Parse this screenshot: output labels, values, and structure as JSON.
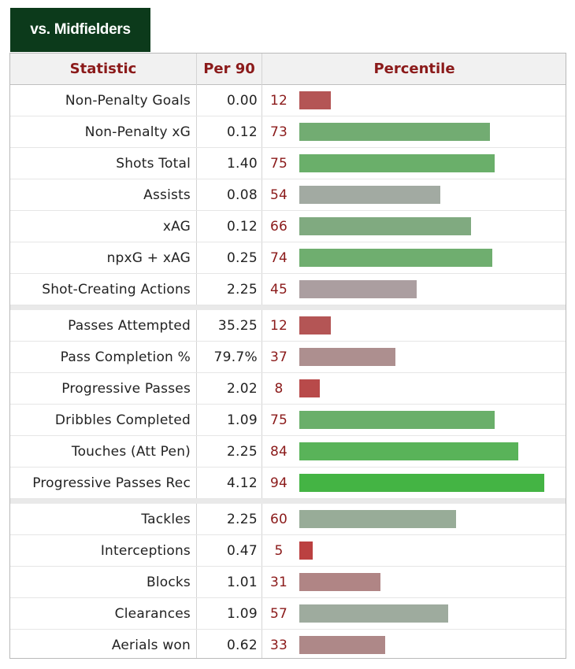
{
  "tab": {
    "label": "vs. Midfielders"
  },
  "header": {
    "statistic": "Statistic",
    "per90": "Per 90",
    "percentile": "Percentile"
  },
  "groups": [
    [
      {
        "stat": "Non-Penalty Goals",
        "per90": "0.00",
        "percentile": 12,
        "color": "#b45555"
      },
      {
        "stat": "Non-Penalty xG",
        "per90": "0.12",
        "percentile": 73,
        "color": "#72ac72"
      },
      {
        "stat": "Shots Total",
        "per90": "1.40",
        "percentile": 75,
        "color": "#6aaf6a"
      },
      {
        "stat": "Assists",
        "per90": "0.08",
        "percentile": 54,
        "color": "#a2aaa2"
      },
      {
        "stat": "xAG",
        "per90": "0.12",
        "percentile": 66,
        "color": "#80aa80"
      },
      {
        "stat": "npxG + xAG",
        "per90": "0.25",
        "percentile": 74,
        "color": "#6fae6f"
      },
      {
        "stat": "Shot-Creating Actions",
        "per90": "2.25",
        "percentile": 45,
        "color": "#ab9ea0"
      }
    ],
    [
      {
        "stat": "Passes Attempted",
        "per90": "35.25",
        "percentile": 12,
        "color": "#b45555"
      },
      {
        "stat": "Pass Completion %",
        "per90": "79.7%",
        "percentile": 37,
        "color": "#ad8f8f"
      },
      {
        "stat": "Progressive Passes",
        "per90": "2.02",
        "percentile": 8,
        "color": "#b84a4a"
      },
      {
        "stat": "Dribbles Completed",
        "per90": "1.09",
        "percentile": 75,
        "color": "#6aaf6a"
      },
      {
        "stat": "Touches (Att Pen)",
        "per90": "2.25",
        "percentile": 84,
        "color": "#59b359"
      },
      {
        "stat": "Progressive Passes Rec",
        "per90": "4.12",
        "percentile": 94,
        "color": "#44b444"
      }
    ],
    [
      {
        "stat": "Tackles",
        "per90": "2.25",
        "percentile": 60,
        "color": "#98ac98"
      },
      {
        "stat": "Interceptions",
        "per90": "0.47",
        "percentile": 5,
        "color": "#bb4040"
      },
      {
        "stat": "Blocks",
        "per90": "1.01",
        "percentile": 31,
        "color": "#b08585"
      },
      {
        "stat": "Clearances",
        "per90": "1.09",
        "percentile": 57,
        "color": "#9eab9e"
      },
      {
        "stat": "Aerials won",
        "per90": "0.62",
        "percentile": 33,
        "color": "#ae8888"
      }
    ]
  ]
}
